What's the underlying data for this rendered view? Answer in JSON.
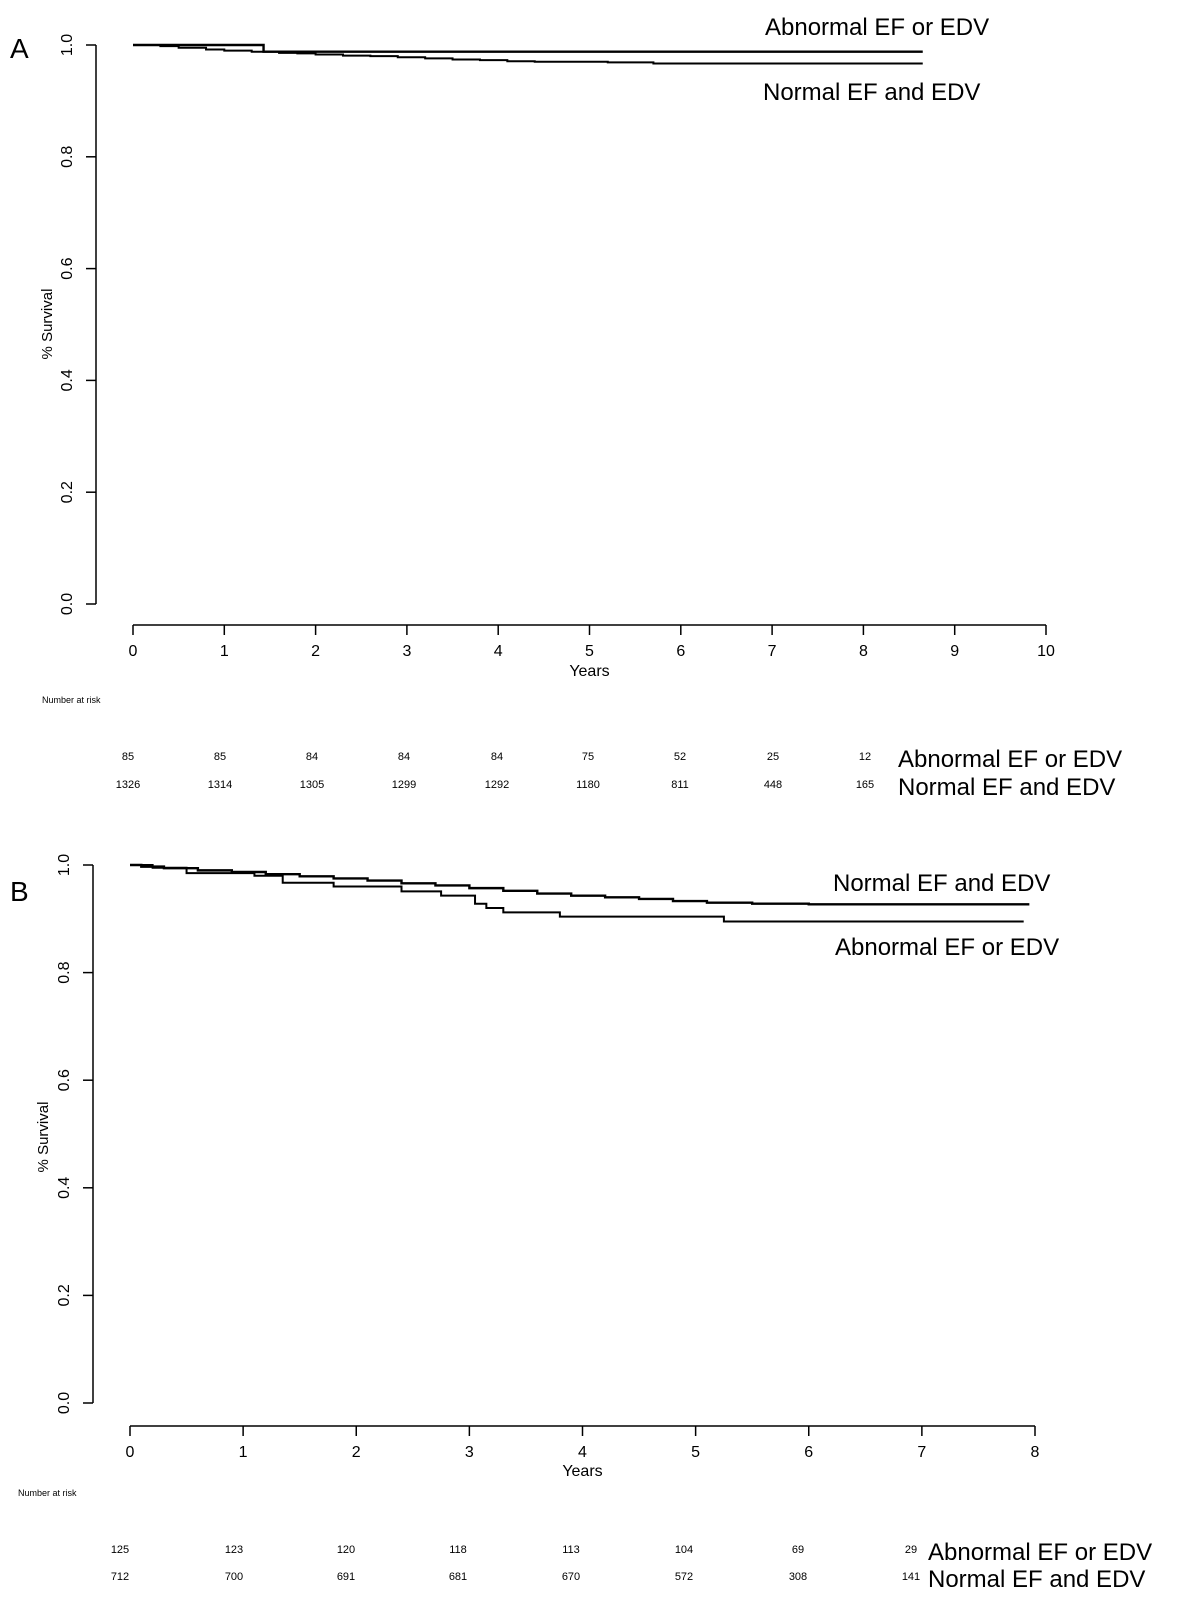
{
  "chart_data": [
    {
      "type": "line",
      "step": true,
      "panel_label": "A",
      "title": "",
      "xlabel": "Years",
      "ylabel": "% Survival",
      "xlim": [
        0,
        10
      ],
      "ylim": [
        0,
        1
      ],
      "x_ticks": [
        0,
        1,
        2,
        3,
        4,
        5,
        6,
        7,
        8,
        9,
        10
      ],
      "y_ticks": [
        "0.0",
        "0.2",
        "0.4",
        "0.6",
        "0.8",
        "1.0"
      ],
      "series": [
        {
          "name": "Abnormal EF or EDV",
          "points": [
            [
              0,
              1.0
            ],
            [
              1.43,
              1.0
            ],
            [
              1.43,
              0.988
            ],
            [
              8.65,
              0.988
            ]
          ]
        },
        {
          "name": "Normal EF and EDV",
          "points": [
            [
              0,
              1.0
            ],
            [
              0.3,
              0.998
            ],
            [
              0.5,
              0.995
            ],
            [
              0.8,
              0.992
            ],
            [
              1.0,
              0.99
            ],
            [
              1.3,
              0.988
            ],
            [
              1.6,
              0.986
            ],
            [
              1.8,
              0.985
            ],
            [
              2.0,
              0.983
            ],
            [
              2.3,
              0.981
            ],
            [
              2.6,
              0.98
            ],
            [
              2.9,
              0.978
            ],
            [
              3.2,
              0.976
            ],
            [
              3.5,
              0.974
            ],
            [
              3.8,
              0.973
            ],
            [
              4.1,
              0.971
            ],
            [
              4.4,
              0.97
            ],
            [
              4.8,
              0.97
            ],
            [
              5.2,
              0.969
            ],
            [
              5.7,
              0.967
            ],
            [
              6.2,
              0.967
            ],
            [
              8.65,
              0.967
            ]
          ]
        }
      ],
      "risk_table": {
        "title": "Number at risk",
        "rows": [
          {
            "label": "Abnormal EF or EDV",
            "values": [
              "85",
              "85",
              "84",
              "84",
              "84",
              "75",
              "52",
              "25",
              "12"
            ]
          },
          {
            "label": "Normal EF and EDV",
            "values": [
              "1326",
              "1314",
              "1305",
              "1299",
              "1292",
              "1180",
              "811",
              "448",
              "165"
            ]
          }
        ]
      }
    },
    {
      "type": "line",
      "step": true,
      "panel_label": "B",
      "title": "",
      "xlabel": "Years",
      "ylabel": "% Survival",
      "xlim": [
        0,
        8
      ],
      "ylim": [
        0,
        1
      ],
      "x_ticks": [
        0,
        1,
        2,
        3,
        4,
        5,
        6,
        7,
        8
      ],
      "y_ticks": [
        "0.0",
        "0.2",
        "0.4",
        "0.6",
        "0.8",
        "1.0"
      ],
      "series": [
        {
          "name": "Normal EF and EDV",
          "points": [
            [
              0,
              1.0
            ],
            [
              0.1,
              0.997
            ],
            [
              0.3,
              0.994
            ],
            [
              0.6,
              0.99
            ],
            [
              0.9,
              0.987
            ],
            [
              1.2,
              0.983
            ],
            [
              1.5,
              0.979
            ],
            [
              1.8,
              0.975
            ],
            [
              2.1,
              0.971
            ],
            [
              2.4,
              0.966
            ],
            [
              2.7,
              0.962
            ],
            [
              3.0,
              0.957
            ],
            [
              3.3,
              0.952
            ],
            [
              3.6,
              0.947
            ],
            [
              3.9,
              0.943
            ],
            [
              4.2,
              0.94
            ],
            [
              4.5,
              0.937
            ],
            [
              4.8,
              0.933
            ],
            [
              5.1,
              0.93
            ],
            [
              5.5,
              0.928
            ],
            [
              6.0,
              0.927
            ],
            [
              7.95,
              0.927
            ]
          ]
        },
        {
          "name": "Abnormal EF or EDV",
          "points": [
            [
              0,
              1.0
            ],
            [
              0.2,
              0.995
            ],
            [
              0.5,
              0.985
            ],
            [
              1.1,
              0.98
            ],
            [
              1.35,
              0.967
            ],
            [
              1.8,
              0.96
            ],
            [
              2.4,
              0.951
            ],
            [
              2.75,
              0.943
            ],
            [
              3.05,
              0.928
            ],
            [
              3.15,
              0.92
            ],
            [
              3.3,
              0.912
            ],
            [
              3.8,
              0.904
            ],
            [
              4.7,
              0.904
            ],
            [
              5.25,
              0.895
            ],
            [
              7.9,
              0.895
            ]
          ]
        }
      ],
      "risk_table": {
        "title": "Number at risk",
        "rows": [
          {
            "label": "Abnormal EF or EDV",
            "values": [
              "125",
              "123",
              "120",
              "118",
              "113",
              "104",
              "69",
              "29"
            ]
          },
          {
            "label": "Normal EF and EDV",
            "values": [
              "712",
              "700",
              "691",
              "681",
              "670",
              "572",
              "308",
              "141"
            ]
          }
        ]
      }
    }
  ]
}
